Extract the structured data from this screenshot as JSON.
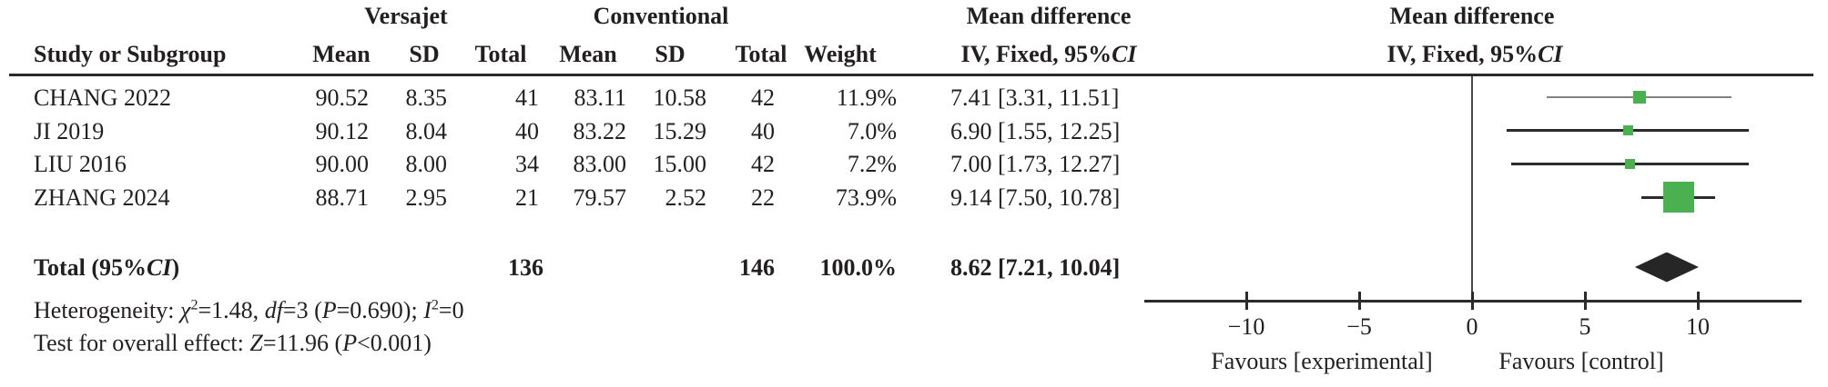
{
  "colors": {
    "text": "#231f20",
    "square_green": "#4bb04f",
    "ci_black": "#2b2b2b",
    "ci_grey": "#828282",
    "diamond_black": "#262626",
    "zero_line": "#4a4a4a"
  },
  "header": {
    "group1": "Versajet",
    "group2": "Conventional",
    "md_title_left": "Mean difference",
    "md_title_right": "Mean difference",
    "col_study": "Study or Subgroup",
    "col_mean1": "Mean",
    "col_sd1": "SD",
    "col_total1": "Total",
    "col_mean2": "Mean",
    "col_sd2": "SD",
    "col_total2": "Total",
    "col_weight": "Weight",
    "ci_header_rich": [
      {
        "t": "IV, Fixed, 95%"
      },
      {
        "t": "CI",
        "i": true
      }
    ]
  },
  "table": {
    "rows": [
      {
        "study": "CHANG 2022",
        "vmean": "90.52",
        "vsd": "8.35",
        "vtotal": "41",
        "cmean": "83.11",
        "csd": "10.58",
        "ctotal": "42",
        "weight": "11.9%",
        "md": "7.41 [3.31, 11.51]"
      },
      {
        "study": "JI 2019",
        "vmean": "90.12",
        "vsd": "8.04",
        "vtotal": "40",
        "cmean": "83.22",
        "csd": "15.29",
        "ctotal": "40",
        "weight": "7.0%",
        "md": "6.90 [1.55, 12.25]"
      },
      {
        "study": "LIU 2016",
        "vmean": "90.00",
        "vsd": "8.00",
        "vtotal": "34",
        "cmean": "83.00",
        "csd": "15.00",
        "ctotal": "42",
        "weight": "7.2%",
        "md": "7.00 [1.73, 12.27]"
      },
      {
        "study": "ZHANG 2024",
        "vmean": "88.71",
        "vsd": "2.95",
        "vtotal": "21",
        "cmean": "79.57",
        "csd": "2.52",
        "ctotal": "22",
        "weight": "73.9%",
        "md": "9.14 [7.50, 10.78]"
      }
    ],
    "total_row": {
      "label_rich": [
        {
          "t": "Total (95%"
        },
        {
          "t": "CI",
          "i": true
        },
        {
          "t": ")"
        }
      ],
      "vtotal": "136",
      "ctotal": "146",
      "weight": "100.0%",
      "md": "8.62 [7.21, 10.04]"
    }
  },
  "footer": {
    "heterogeneity_rich": [
      {
        "t": "Heterogeneity: "
      },
      {
        "t": "χ",
        "i": true
      },
      {
        "t": "2",
        "sup": true
      },
      {
        "t": "=1.48, "
      },
      {
        "t": "df",
        "i": true
      },
      {
        "t": "=3 ("
      },
      {
        "t": "P",
        "i": true
      },
      {
        "t": "=0.690); "
      },
      {
        "t": "I",
        "i": true
      },
      {
        "t": "2",
        "sup": true
      },
      {
        "t": "=0"
      }
    ],
    "overall_effect_rich": [
      {
        "t": "Test for overall effect: "
      },
      {
        "t": "Z",
        "i": true
      },
      {
        "t": "=11.96 ("
      },
      {
        "t": "P",
        "i": true
      },
      {
        "t": "<0.001)"
      }
    ]
  },
  "chart_data": {
    "type": "forest",
    "effect_measure": "Mean difference, IV, Fixed, 95% CI",
    "studies": [
      {
        "label": "CHANG 2022",
        "est": 7.41,
        "lo": 3.31,
        "hi": 11.51,
        "weight_pct": 11.9,
        "ci_color": "#828282",
        "ci_thickness": 2
      },
      {
        "label": "JI 2019",
        "est": 6.9,
        "lo": 1.55,
        "hi": 12.25,
        "weight_pct": 7.0,
        "ci_color": "#2b2b2b",
        "ci_thickness": 3
      },
      {
        "label": "LIU 2016",
        "est": 7.0,
        "lo": 1.73,
        "hi": 12.27,
        "weight_pct": 7.2,
        "ci_color": "#2b2b2b",
        "ci_thickness": 3
      },
      {
        "label": "ZHANG 2024",
        "est": 9.14,
        "lo": 7.5,
        "hi": 10.78,
        "weight_pct": 73.9,
        "ci_color": "#2b2b2b",
        "ci_thickness": 3
      }
    ],
    "total": {
      "label": "Total (95%CI)",
      "est": 8.62,
      "lo": 7.21,
      "hi": 10.04,
      "weight_pct": 100.0
    },
    "axis": {
      "min": -14.5,
      "max": 14.6,
      "tick_values": [
        -10,
        -5,
        0,
        5,
        10
      ],
      "tick_labels": [
        "−10",
        "−5",
        "0",
        "5",
        "10"
      ]
    },
    "favours_left": "Favours [experimental]",
    "favours_right": "Favours [control]"
  }
}
